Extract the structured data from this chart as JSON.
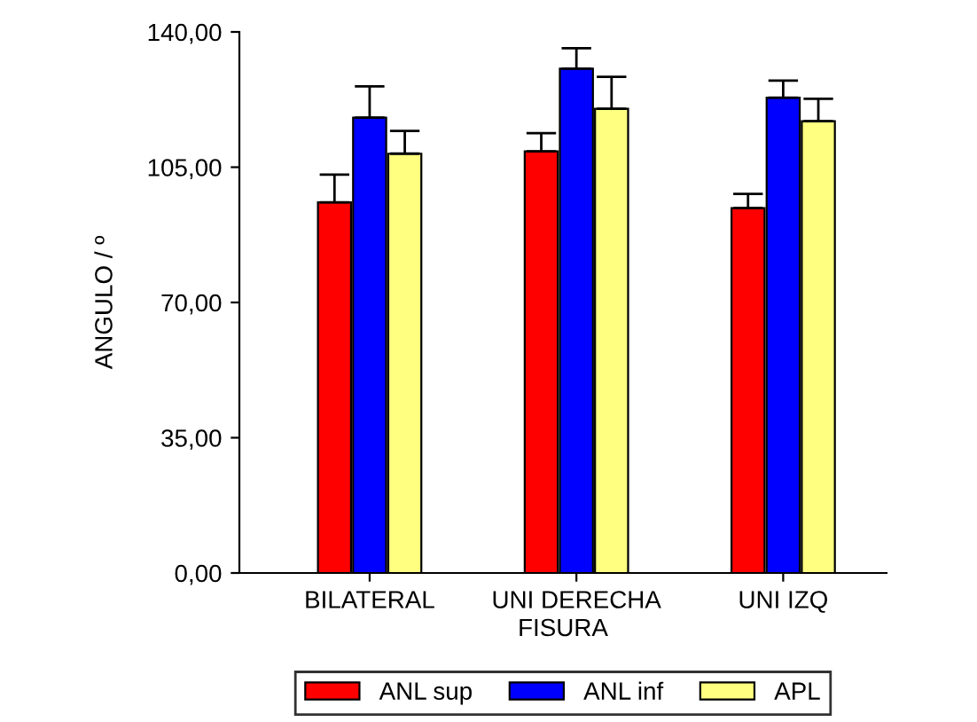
{
  "chart_data": {
    "type": "bar",
    "xlabel": "FISURA",
    "ylabel": "ANGULO / º",
    "categories": [
      "BILATERAL",
      "UNI DERECHA",
      "UNI IZQ"
    ],
    "series": [
      {
        "name": "ANL sup",
        "color": "#ff0000",
        "values": [
          95.9,
          109.1,
          94.4
        ],
        "errors": [
          [
            95.9,
            103.1
          ],
          [
            109.1,
            113.8
          ],
          [
            94.4,
            98.1
          ]
        ]
      },
      {
        "name": "ANL inf",
        "color": "#0000ff",
        "values": [
          117.8,
          130.5,
          123.0
        ],
        "errors": [
          [
            117.8,
            125.9
          ],
          [
            130.5,
            135.8
          ],
          [
            123.0,
            127.4
          ]
        ]
      },
      {
        "name": "APL",
        "color": "#ffff80",
        "values": [
          108.5,
          120.1,
          116.9
        ],
        "errors": [
          [
            108.5,
            114.4
          ],
          [
            120.1,
            128.4
          ],
          [
            116.9,
            122.7
          ]
        ]
      }
    ],
    "ylim": [
      0,
      140
    ],
    "yticks": [
      {
        "value": 0,
        "label": "0,00"
      },
      {
        "value": 35,
        "label": "35,00"
      },
      {
        "value": 70,
        "label": "70,00"
      },
      {
        "value": 105,
        "label": "105,00"
      },
      {
        "value": 140,
        "label": "140,00"
      }
    ],
    "legend": "bottom",
    "grid": false
  }
}
